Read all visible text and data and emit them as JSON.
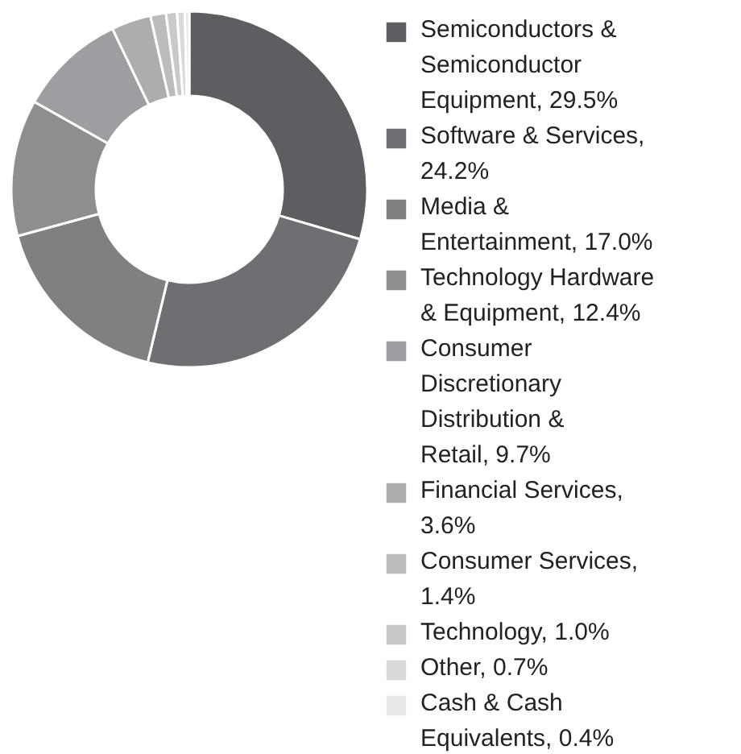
{
  "chart_data": {
    "type": "donut",
    "categories": [
      "Semiconductors & Semiconductor Equipment, 29.5%",
      "Software & Services, 24.2%",
      "Media & Entertainment, 17.0%",
      "Technology Hardware & Equipment, 12.4%",
      "Consumer Discretionary Distribution & Retail, 9.7%",
      "Financial Services, 3.6%",
      "Consumer Services, 1.4%",
      "Technology, 1.0%",
      "Other, 0.7%",
      "Cash & Cash Equivalents, 0.4%"
    ],
    "values": [
      29.5,
      24.2,
      17.0,
      12.4,
      9.7,
      3.6,
      1.4,
      1.0,
      0.7,
      0.4
    ],
    "colors": [
      "#5e5e62",
      "#6e6f73",
      "#808083",
      "#8e8e91",
      "#9d9ea1",
      "#acadaf",
      "#bbbcbe",
      "#c9c9cb",
      "#d9d9db",
      "#e8e8ea"
    ],
    "legend": "right"
  }
}
